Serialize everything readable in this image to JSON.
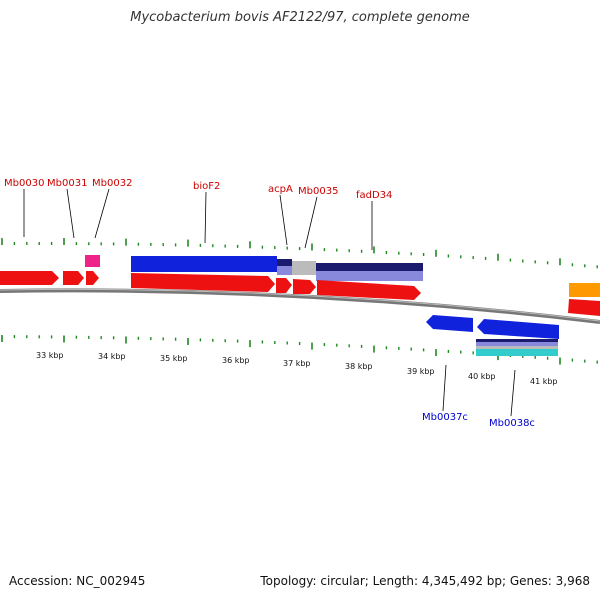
{
  "title": "Mycobacterium bovis AF2122/97, complete genome",
  "footer": {
    "accession": "Accession: NC_002945",
    "topology": "Topology: circular; Length: 4,345,492 bp; Genes: 3,968"
  },
  "colors": {
    "forward_gene": "#ee1111",
    "reverse_gene": "#1122dd",
    "forward_label": "#cc0000",
    "reverse_label": "#0000cc",
    "tick": "#228822",
    "backbone": "#777777",
    "pink_feature": "#ee2288",
    "orange_feature": "#ff9900",
    "navy_feature": "#1a1a6e",
    "lavender_feature": "#8888dd",
    "grey_feature": "#bbbbbb",
    "cyan_feature": "#33cccc"
  },
  "kbp_labels": [
    "33 kbp",
    "34 kbp",
    "35 kbp",
    "36 kbp",
    "37 kbp",
    "38 kbp",
    "39 kbp",
    "40 kbp",
    "41 kbp"
  ],
  "forward_labels": [
    "Mb0030",
    "Mb0031",
    "Mb0032",
    "bioF2",
    "acpA",
    "Mb0035",
    "fadD34"
  ],
  "reverse_labels": [
    "Mb0037c",
    "Mb0038c"
  ]
}
